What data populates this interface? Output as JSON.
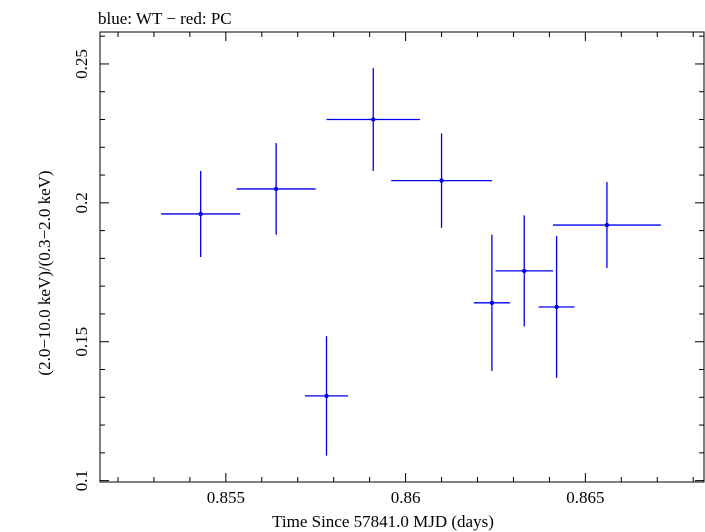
{
  "chart_data": {
    "type": "scatter",
    "title": "blue: WT − red: PC",
    "xlabel": "Time Since 57841.0 MJD (days)",
    "ylabel": "(2.0−10.0 keV)/(0.3−2.0 keV)",
    "xlim": [
      0.8515,
      0.8683
    ],
    "ylim": [
      0.0995,
      0.2615
    ],
    "x_ticks": [
      {
        "value": 0.855,
        "label": "0.855"
      },
      {
        "value": 0.86,
        "label": "0.86"
      },
      {
        "value": 0.865,
        "label": "0.865"
      }
    ],
    "y_ticks": [
      {
        "value": 0.1,
        "label": "0.1"
      },
      {
        "value": 0.15,
        "label": "0.15"
      },
      {
        "value": 0.2,
        "label": "0.2"
      },
      {
        "value": 0.25,
        "label": "0.25"
      }
    ],
    "grid": false,
    "color": "#0000ee",
    "series": [
      {
        "points": [
          {
            "x": 0.8543,
            "y": 0.196,
            "xerr": 0.0011,
            "yerr_lo": 0.0155,
            "yerr_hi": 0.0155
          },
          {
            "x": 0.8564,
            "y": 0.205,
            "xerr": 0.0011,
            "yerr_lo": 0.0165,
            "yerr_hi": 0.0165
          },
          {
            "x": 0.8578,
            "y": 0.1305,
            "xerr": 0.0006,
            "yerr_lo": 0.0215,
            "yerr_hi": 0.0215
          },
          {
            "x": 0.8591,
            "y": 0.23,
            "xerr": 0.0013,
            "yerr_lo": 0.0185,
            "yerr_hi": 0.0185
          },
          {
            "x": 0.861,
            "y": 0.208,
            "xerr": 0.0014,
            "yerr_lo": 0.017,
            "yerr_hi": 0.017
          },
          {
            "x": 0.8624,
            "y": 0.164,
            "xerr": 0.0005,
            "yerr_lo": 0.0245,
            "yerr_hi": 0.0245
          },
          {
            "x": 0.8633,
            "y": 0.1755,
            "xerr": 0.0008,
            "yerr_lo": 0.02,
            "yerr_hi": 0.02
          },
          {
            "x": 0.8642,
            "y": 0.1625,
            "xerr": 0.0005,
            "yerr_lo": 0.0255,
            "yerr_hi": 0.0255
          },
          {
            "x": 0.8656,
            "y": 0.192,
            "xerr": 0.0015,
            "yerr_lo": 0.0155,
            "yerr_hi": 0.0155
          }
        ]
      }
    ]
  }
}
